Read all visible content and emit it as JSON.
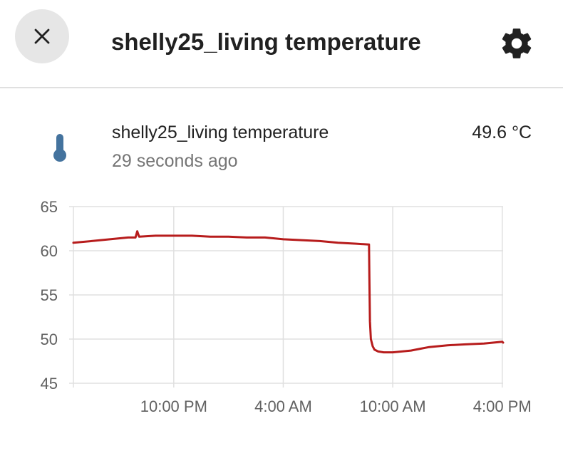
{
  "dialog": {
    "title": "shelly25_living temperature",
    "close_icon": "close-icon",
    "settings_icon": "gear-icon"
  },
  "entity": {
    "icon": "thermometer-icon",
    "name": "shelly25_living temperature",
    "state": "49.6 °C",
    "last_changed": "29 seconds ago"
  },
  "colors": {
    "line": "#b71c1c",
    "icon": "#44739e",
    "grid": "#e0e0e0"
  },
  "chart_data": {
    "type": "line",
    "xlabel": "",
    "ylabel": "",
    "ylim": [
      45,
      65
    ],
    "yticks": [
      45,
      50,
      55,
      60,
      65
    ],
    "xticks": [
      {
        "label": "10:00 PM",
        "hour": 22
      },
      {
        "label": "4:00 AM",
        "hour": 28
      },
      {
        "label": "10:00 AM",
        "hour": 34
      },
      {
        "label": "4:00 PM",
        "hour": 40
      }
    ],
    "xlim": [
      16.5,
      40.05
    ],
    "grid": true,
    "series": [
      {
        "x": [
          16.5,
          17.5,
          18.5,
          19.5,
          19.9,
          20.0,
          20.1,
          21,
          22,
          23,
          24,
          25,
          26,
          27,
          28,
          29,
          30,
          31,
          32,
          32.7,
          32.72,
          32.75,
          32.8,
          32.9,
          33.0,
          33.2,
          33.5,
          34,
          34.5,
          35,
          35.5,
          36,
          37,
          38,
          39,
          40,
          40.05
        ],
        "y": [
          60.9,
          61.1,
          61.3,
          61.5,
          61.5,
          62.2,
          61.6,
          61.7,
          61.7,
          61.7,
          61.6,
          61.6,
          61.5,
          61.5,
          61.3,
          61.2,
          61.1,
          60.9,
          60.8,
          60.7,
          57,
          52,
          50,
          49.2,
          48.8,
          48.6,
          48.5,
          48.5,
          48.6,
          48.7,
          48.9,
          49.1,
          49.3,
          49.4,
          49.5,
          49.7,
          49.6
        ]
      }
    ]
  }
}
